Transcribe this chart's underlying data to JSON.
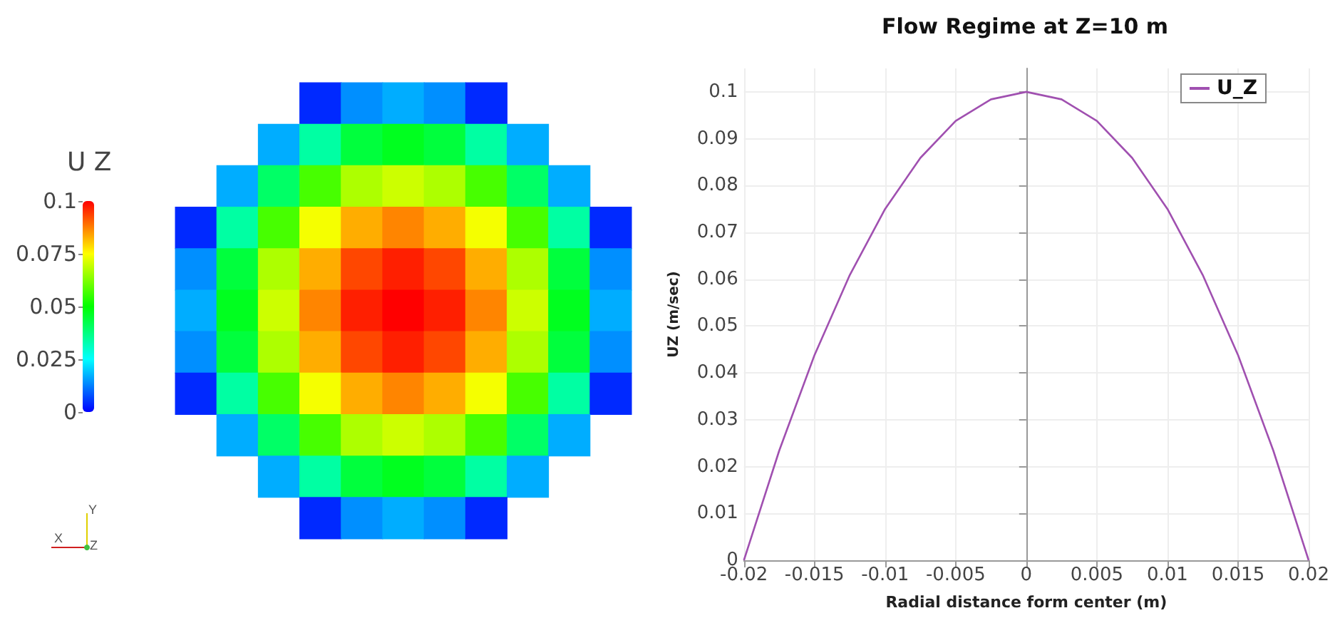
{
  "chart_data": [
    {
      "type": "heatmap",
      "clabel": "U Z",
      "clim": [
        0,
        0.1
      ],
      "cticks": [
        0,
        0.025,
        0.05,
        0.075,
        0.1
      ],
      "tick_labels": false,
      "categories": [
        null,
        null,
        null,
        null,
        null,
        null,
        null,
        null,
        null,
        null,
        null
      ],
      "y_categories": [
        null,
        null,
        null,
        null,
        null,
        null,
        null,
        null,
        null,
        null,
        null
      ],
      "cells": [
        [
          null,
          null,
          null,
          0.004,
          0.014,
          0.017,
          0.014,
          0.004,
          null,
          null,
          null
        ],
        [
          null,
          null,
          0.017,
          0.034,
          0.044,
          0.047,
          0.044,
          0.034,
          0.017,
          null,
          null
        ],
        [
          null,
          0.017,
          0.04,
          0.057,
          0.067,
          0.07,
          0.067,
          0.057,
          0.04,
          0.017,
          null
        ],
        [
          0.004,
          0.034,
          0.057,
          0.074,
          0.083,
          0.087,
          0.083,
          0.074,
          0.057,
          0.034,
          0.004
        ],
        [
          0.014,
          0.044,
          0.067,
          0.083,
          0.093,
          0.097,
          0.093,
          0.083,
          0.067,
          0.044,
          0.014
        ],
        [
          0.017,
          0.047,
          0.07,
          0.087,
          0.097,
          0.1,
          0.097,
          0.087,
          0.07,
          0.047,
          0.017
        ],
        [
          0.014,
          0.044,
          0.067,
          0.083,
          0.093,
          0.097,
          0.093,
          0.083,
          0.067,
          0.044,
          0.014
        ],
        [
          0.004,
          0.034,
          0.057,
          0.074,
          0.083,
          0.087,
          0.083,
          0.074,
          0.057,
          0.034,
          0.004
        ],
        [
          null,
          0.017,
          0.04,
          0.057,
          0.067,
          0.07,
          0.067,
          0.057,
          0.04,
          0.017,
          null
        ],
        [
          null,
          null,
          0.017,
          0.034,
          0.044,
          0.047,
          0.044,
          0.034,
          0.017,
          null,
          null
        ],
        [
          null,
          null,
          null,
          0.004,
          0.014,
          0.017,
          0.014,
          0.004,
          null,
          null,
          null
        ]
      ],
      "colors": [
        "#0000ff",
        "#00ffff",
        "#00ff00",
        "#ffff00",
        "#ff0000"
      ],
      "annotations": [
        "Y",
        "X",
        "Z"
      ]
    },
    {
      "type": "line",
      "title": "Flow Regime at Z=10 m",
      "xlabel": "Radial distance form center (m)",
      "ylabel": "UZ (m/sec)",
      "x": [
        -0.02,
        -0.0175,
        -0.015,
        -0.0125,
        -0.01,
        -0.0075,
        -0.005,
        -0.0025,
        0,
        0.0025,
        0.005,
        0.0075,
        0.01,
        0.0125,
        0.015,
        0.0175,
        0.02
      ],
      "series": [
        {
          "name": "U_Z",
          "color": "#a050b0",
          "values": [
            0,
            0.0234,
            0.0438,
            0.0609,
            0.075,
            0.0859,
            0.0938,
            0.0984,
            0.1,
            0.0984,
            0.0938,
            0.0859,
            0.075,
            0.0609,
            0.0438,
            0.0234,
            0
          ]
        }
      ],
      "xlim": [
        -0.02,
        0.02
      ],
      "xticks": [
        -0.02,
        -0.015,
        -0.01,
        -0.005,
        0,
        0.005,
        0.01,
        0.015,
        0.02
      ],
      "ylim": [
        0,
        0.105
      ],
      "yticks": [
        0,
        0.01,
        0.02,
        0.03,
        0.04,
        0.05,
        0.06,
        0.07,
        0.08,
        0.09,
        0.1
      ],
      "grid": true,
      "legend": "top right",
      "marker": "none",
      "line_style": "solid"
    }
  ]
}
